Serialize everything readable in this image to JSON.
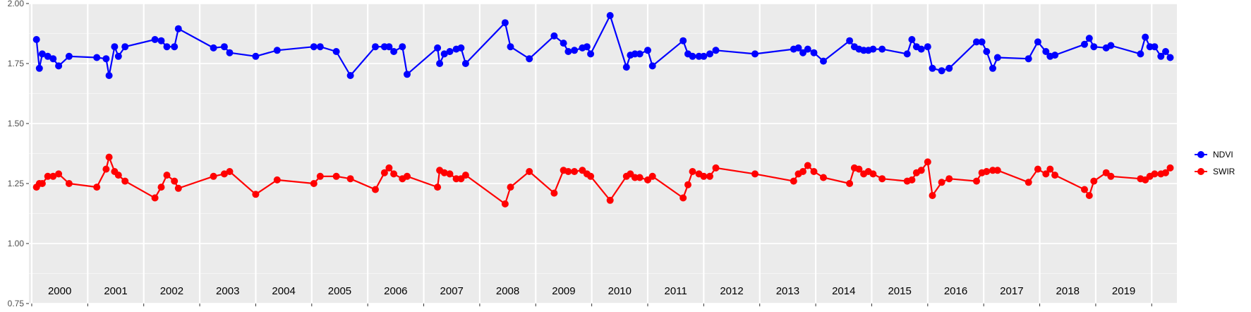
{
  "chart_data": {
    "type": "line",
    "title": "",
    "xlabel": "",
    "ylabel": "",
    "ylim": [
      0.75,
      2.0
    ],
    "yticks": [
      "0.75",
      "1.00",
      "1.25",
      "1.50",
      "1.75",
      "2.00"
    ],
    "ytick_values": [
      0.75,
      1.0,
      1.25,
      1.5,
      1.75,
      2.0
    ],
    "grid": true,
    "legend_position": "right",
    "year_facets": [
      "2000",
      "2001",
      "2002",
      "2003",
      "2004",
      "2005",
      "2006",
      "2007",
      "2008",
      "2009",
      "2010",
      "2011",
      "2012",
      "2013",
      "2014",
      "2015",
      "2016",
      "2017",
      "2018",
      "2019"
    ],
    "series": [
      {
        "name": "NDVI",
        "color": "#0000ff",
        "points": [
          [
            "2000-02-01",
            1.85
          ],
          [
            "2000-02-20",
            1.73
          ],
          [
            "2000-03-10",
            1.79
          ],
          [
            "2000-04-15",
            1.78
          ],
          [
            "2000-05-20",
            1.77
          ],
          [
            "2000-06-25",
            1.74
          ],
          [
            "2000-09-01",
            1.78
          ],
          [
            "2001-03-01",
            1.775
          ],
          [
            "2001-05-01",
            1.77
          ],
          [
            "2001-05-20",
            1.7
          ],
          [
            "2001-06-25",
            1.82
          ],
          [
            "2001-07-20",
            1.78
          ],
          [
            "2001-09-01",
            1.82
          ],
          [
            "2002-03-15",
            1.85
          ],
          [
            "2002-04-25",
            1.845
          ],
          [
            "2002-06-01",
            1.82
          ],
          [
            "2002-07-20",
            1.82
          ],
          [
            "2002-08-15",
            1.895
          ],
          [
            "2003-04-01",
            1.815
          ],
          [
            "2003-06-10",
            1.82
          ],
          [
            "2003-07-15",
            1.795
          ],
          [
            "2004-01-01",
            1.78
          ],
          [
            "2004-05-20",
            1.805
          ],
          [
            "2005-01-15",
            1.82
          ],
          [
            "2005-02-25",
            1.82
          ],
          [
            "2005-06-10",
            1.8
          ],
          [
            "2005-09-10",
            1.7
          ],
          [
            "2006-02-20",
            1.82
          ],
          [
            "2006-04-20",
            1.82
          ],
          [
            "2006-05-20",
            1.82
          ],
          [
            "2006-06-20",
            1.8
          ],
          [
            "2006-08-15",
            1.82
          ],
          [
            "2006-09-15",
            1.705
          ],
          [
            "2007-04-01",
            1.815
          ],
          [
            "2007-04-15",
            1.75
          ],
          [
            "2007-05-15",
            1.79
          ],
          [
            "2007-06-20",
            1.8
          ],
          [
            "2007-08-01",
            1.81
          ],
          [
            "2007-09-01",
            1.815
          ],
          [
            "2007-10-01",
            1.75
          ],
          [
            "2008-06-15",
            1.92
          ],
          [
            "2008-07-20",
            1.82
          ],
          [
            "2008-11-20",
            1.77
          ],
          [
            "2009-05-01",
            1.865
          ],
          [
            "2009-07-01",
            1.835
          ],
          [
            "2009-08-01",
            1.8
          ],
          [
            "2009-09-10",
            1.805
          ],
          [
            "2009-11-01",
            1.815
          ],
          [
            "2009-12-01",
            1.82
          ],
          [
            "2009-12-25",
            1.79
          ],
          [
            "2010-05-01",
            1.95
          ],
          [
            "2010-08-15",
            1.735
          ],
          [
            "2010-09-10",
            1.785
          ],
          [
            "2010-10-10",
            1.79
          ],
          [
            "2010-11-10",
            1.79
          ],
          [
            "2011-01-01",
            1.805
          ],
          [
            "2011-02-01",
            1.74
          ],
          [
            "2011-08-20",
            1.845
          ],
          [
            "2011-09-20",
            1.79
          ],
          [
            "2011-10-20",
            1.78
          ],
          [
            "2011-12-01",
            1.78
          ],
          [
            "2012-01-01",
            1.78
          ],
          [
            "2012-02-10",
            1.79
          ],
          [
            "2012-03-20",
            1.805
          ],
          [
            "2012-12-01",
            1.79
          ],
          [
            "2013-08-10",
            1.81
          ],
          [
            "2013-09-10",
            1.815
          ],
          [
            "2013-10-10",
            1.795
          ],
          [
            "2013-11-10",
            1.81
          ],
          [
            "2013-12-20",
            1.795
          ],
          [
            "2014-02-20",
            1.76
          ],
          [
            "2014-08-10",
            1.845
          ],
          [
            "2014-09-10",
            1.82
          ],
          [
            "2014-10-10",
            1.81
          ],
          [
            "2014-11-10",
            1.805
          ],
          [
            "2014-12-10",
            1.805
          ],
          [
            "2015-01-10",
            1.81
          ],
          [
            "2015-03-10",
            1.81
          ],
          [
            "2015-08-20",
            1.79
          ],
          [
            "2015-09-20",
            1.85
          ],
          [
            "2015-10-20",
            1.82
          ],
          [
            "2015-11-20",
            1.81
          ],
          [
            "2016-01-01",
            1.82
          ],
          [
            "2016-02-01",
            1.73
          ],
          [
            "2016-04-01",
            1.72
          ],
          [
            "2016-05-20",
            1.73
          ],
          [
            "2016-11-15",
            1.84
          ],
          [
            "2016-12-20",
            1.84
          ],
          [
            "2017-01-20",
            1.8
          ],
          [
            "2017-03-01",
            1.73
          ],
          [
            "2017-04-01",
            1.775
          ],
          [
            "2017-10-20",
            1.77
          ],
          [
            "2017-12-20",
            1.84
          ],
          [
            "2018-02-10",
            1.8
          ],
          [
            "2018-03-10",
            1.78
          ],
          [
            "2018-04-10",
            1.785
          ],
          [
            "2018-10-20",
            1.83
          ],
          [
            "2018-11-20",
            1.855
          ],
          [
            "2018-12-20",
            1.82
          ],
          [
            "2019-03-10",
            1.815
          ],
          [
            "2019-04-10",
            1.825
          ],
          [
            "2019-10-20",
            1.79
          ],
          [
            "2019-11-20",
            1.86
          ],
          [
            "2019-12-20",
            1.82
          ],
          [
            "2020-01-20",
            1.82
          ],
          [
            "2020-03-01",
            1.78
          ],
          [
            "2020-04-01",
            1.8
          ],
          [
            "2020-05-01",
            1.775
          ]
        ]
      },
      {
        "name": "SWIR",
        "color": "#ff0000",
        "points": [
          [
            "2000-02-01",
            1.235
          ],
          [
            "2000-02-20",
            1.25
          ],
          [
            "2000-03-10",
            1.25
          ],
          [
            "2000-04-15",
            1.28
          ],
          [
            "2000-05-20",
            1.28
          ],
          [
            "2000-06-25",
            1.29
          ],
          [
            "2000-09-01",
            1.25
          ],
          [
            "2001-03-01",
            1.235
          ],
          [
            "2001-05-01",
            1.31
          ],
          [
            "2001-05-20",
            1.36
          ],
          [
            "2001-06-25",
            1.3
          ],
          [
            "2001-07-20",
            1.285
          ],
          [
            "2001-09-01",
            1.26
          ],
          [
            "2002-03-15",
            1.19
          ],
          [
            "2002-04-25",
            1.235
          ],
          [
            "2002-06-01",
            1.285
          ],
          [
            "2002-07-20",
            1.26
          ],
          [
            "2002-08-15",
            1.23
          ],
          [
            "2003-04-01",
            1.28
          ],
          [
            "2003-06-10",
            1.29
          ],
          [
            "2003-07-15",
            1.3
          ],
          [
            "2004-01-01",
            1.205
          ],
          [
            "2004-05-20",
            1.265
          ],
          [
            "2005-01-15",
            1.25
          ],
          [
            "2005-02-25",
            1.28
          ],
          [
            "2005-06-10",
            1.28
          ],
          [
            "2005-09-10",
            1.27
          ],
          [
            "2006-02-20",
            1.225
          ],
          [
            "2006-04-20",
            1.295
          ],
          [
            "2006-05-20",
            1.315
          ],
          [
            "2006-06-20",
            1.29
          ],
          [
            "2006-08-15",
            1.27
          ],
          [
            "2006-09-15",
            1.28
          ],
          [
            "2007-04-01",
            1.235
          ],
          [
            "2007-04-15",
            1.305
          ],
          [
            "2007-05-15",
            1.295
          ],
          [
            "2007-06-20",
            1.29
          ],
          [
            "2007-08-01",
            1.27
          ],
          [
            "2007-09-01",
            1.27
          ],
          [
            "2007-10-01",
            1.285
          ],
          [
            "2008-06-15",
            1.165
          ],
          [
            "2008-07-20",
            1.235
          ],
          [
            "2008-11-20",
            1.3
          ],
          [
            "2009-05-01",
            1.21
          ],
          [
            "2009-07-01",
            1.305
          ],
          [
            "2009-08-01",
            1.3
          ],
          [
            "2009-09-10",
            1.3
          ],
          [
            "2009-11-01",
            1.305
          ],
          [
            "2009-12-01",
            1.29
          ],
          [
            "2009-12-25",
            1.28
          ],
          [
            "2010-05-01",
            1.18
          ],
          [
            "2010-08-15",
            1.28
          ],
          [
            "2010-09-10",
            1.29
          ],
          [
            "2010-10-10",
            1.275
          ],
          [
            "2010-11-10",
            1.275
          ],
          [
            "2011-01-01",
            1.265
          ],
          [
            "2011-02-01",
            1.28
          ],
          [
            "2011-08-20",
            1.19
          ],
          [
            "2011-09-20",
            1.245
          ],
          [
            "2011-10-20",
            1.3
          ],
          [
            "2011-12-01",
            1.29
          ],
          [
            "2012-01-01",
            1.28
          ],
          [
            "2012-02-10",
            1.28
          ],
          [
            "2012-03-20",
            1.315
          ],
          [
            "2012-12-01",
            1.29
          ],
          [
            "2013-08-10",
            1.26
          ],
          [
            "2013-09-10",
            1.29
          ],
          [
            "2013-10-10",
            1.3
          ],
          [
            "2013-11-10",
            1.325
          ],
          [
            "2013-12-20",
            1.3
          ],
          [
            "2014-02-20",
            1.275
          ],
          [
            "2014-08-10",
            1.25
          ],
          [
            "2014-09-10",
            1.315
          ],
          [
            "2014-10-10",
            1.31
          ],
          [
            "2014-11-10",
            1.29
          ],
          [
            "2014-12-10",
            1.3
          ],
          [
            "2015-01-10",
            1.29
          ],
          [
            "2015-03-10",
            1.27
          ],
          [
            "2015-08-20",
            1.26
          ],
          [
            "2015-09-20",
            1.265
          ],
          [
            "2015-10-20",
            1.295
          ],
          [
            "2015-11-20",
            1.305
          ],
          [
            "2016-01-01",
            1.34
          ],
          [
            "2016-02-01",
            1.2
          ],
          [
            "2016-04-01",
            1.255
          ],
          [
            "2016-05-20",
            1.27
          ],
          [
            "2016-11-15",
            1.26
          ],
          [
            "2016-12-20",
            1.295
          ],
          [
            "2017-01-20",
            1.3
          ],
          [
            "2017-03-01",
            1.305
          ],
          [
            "2017-04-01",
            1.305
          ],
          [
            "2017-10-20",
            1.255
          ],
          [
            "2017-12-20",
            1.31
          ],
          [
            "2018-02-10",
            1.29
          ],
          [
            "2018-03-10",
            1.31
          ],
          [
            "2018-04-10",
            1.285
          ],
          [
            "2018-10-20",
            1.225
          ],
          [
            "2018-11-20",
            1.2
          ],
          [
            "2018-12-20",
            1.26
          ],
          [
            "2019-03-10",
            1.295
          ],
          [
            "2019-04-10",
            1.28
          ],
          [
            "2019-10-20",
            1.27
          ],
          [
            "2019-11-20",
            1.265
          ],
          [
            "2019-12-20",
            1.28
          ],
          [
            "2020-01-20",
            1.29
          ],
          [
            "2020-03-01",
            1.29
          ],
          [
            "2020-04-01",
            1.295
          ],
          [
            "2020-05-01",
            1.315
          ]
        ]
      }
    ]
  }
}
